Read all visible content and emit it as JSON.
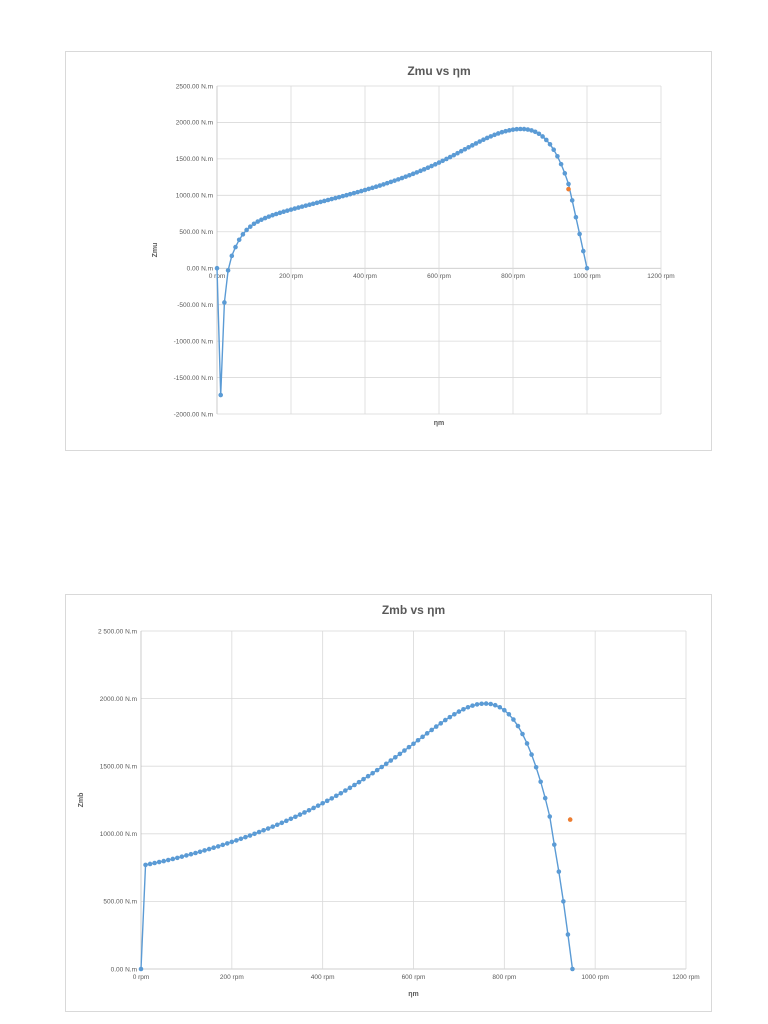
{
  "chart_data": [
    {
      "type": "scatter",
      "title": "Zmu vs ηm",
      "xlabel": "ηm",
      "ylabel": "Zmu",
      "xlim": [
        0,
        1200
      ],
      "ylim": [
        -2000,
        2500
      ],
      "x_ticks": [
        0,
        200,
        400,
        600,
        800,
        1000,
        1200
      ],
      "x_tick_labels": [
        "0 rpm",
        "200 rpm",
        "400 rpm",
        "600 rpm",
        "800 rpm",
        "1000 rpm",
        "1200 rpm"
      ],
      "y_ticks": [
        2500,
        2000,
        1500,
        1000,
        500,
        0,
        -500,
        -1000,
        -1500,
        -2000
      ],
      "y_tick_labels": [
        "2500.00 N.m",
        "2000.00 N.m",
        "1500.00 N.m",
        "1000.00 N.m",
        "500.00 N.m",
        "0.00 N.m",
        "-500.00 N.m",
        "-1000.00 N.m",
        "-1500.00 N.m",
        "-2000.00 N.m"
      ],
      "grid": true,
      "legend": "none",
      "series": [
        {
          "color": "#5b9bd5",
          "points": [
            [
              0,
              0
            ],
            [
              10,
              -1740
            ],
            [
              20,
              -470
            ],
            [
              30,
              -30
            ],
            [
              40,
              170
            ],
            [
              50,
              290
            ],
            [
              60,
              390
            ],
            [
              70,
              465
            ],
            [
              80,
              525
            ],
            [
              90,
              570
            ],
            [
              100,
              610
            ],
            [
              110,
              640
            ],
            [
              120,
              665
            ],
            [
              130,
              688
            ],
            [
              140,
              708
            ],
            [
              150,
              727
            ],
            [
              160,
              744
            ],
            [
              170,
              760
            ],
            [
              180,
              775
            ],
            [
              190,
              790
            ],
            [
              200,
              804
            ],
            [
              210,
              818
            ],
            [
              220,
              832
            ],
            [
              230,
              845
            ],
            [
              240,
              858
            ],
            [
              250,
              871
            ],
            [
              260,
              884
            ],
            [
              270,
              897
            ],
            [
              280,
              910
            ],
            [
              290,
              923
            ],
            [
              300,
              936
            ],
            [
              310,
              949
            ],
            [
              320,
              962
            ],
            [
              330,
              975
            ],
            [
              340,
              989
            ],
            [
              350,
              1002
            ],
            [
              360,
              1016
            ],
            [
              370,
              1030
            ],
            [
              380,
              1044
            ],
            [
              390,
              1058
            ],
            [
              400,
              1073
            ],
            [
              410,
              1088
            ],
            [
              420,
              1103
            ],
            [
              430,
              1118
            ],
            [
              440,
              1134
            ],
            [
              450,
              1150
            ],
            [
              460,
              1167
            ],
            [
              470,
              1184
            ],
            [
              480,
              1201
            ],
            [
              490,
              1219
            ],
            [
              500,
              1237
            ],
            [
              510,
              1256
            ],
            [
              520,
              1275
            ],
            [
              530,
              1295
            ],
            [
              540,
              1315
            ],
            [
              550,
              1336
            ],
            [
              560,
              1357
            ],
            [
              570,
              1379
            ],
            [
              580,
              1402
            ],
            [
              590,
              1425
            ],
            [
              600,
              1449
            ],
            [
              610,
              1474
            ],
            [
              620,
              1499
            ],
            [
              630,
              1525
            ],
            [
              640,
              1551
            ],
            [
              650,
              1578
            ],
            [
              660,
              1605
            ],
            [
              670,
              1632
            ],
            [
              680,
              1659
            ],
            [
              690,
              1686
            ],
            [
              700,
              1712
            ],
            [
              710,
              1738
            ],
            [
              720,
              1763
            ],
            [
              730,
              1787
            ],
            [
              740,
              1809
            ],
            [
              750,
              1830
            ],
            [
              760,
              1849
            ],
            [
              770,
              1866
            ],
            [
              780,
              1880
            ],
            [
              790,
              1892
            ],
            [
              800,
              1901
            ],
            [
              810,
              1907
            ],
            [
              820,
              1910
            ],
            [
              830,
              1909
            ],
            [
              840,
              1903
            ],
            [
              850,
              1891
            ],
            [
              860,
              1872
            ],
            [
              870,
              1845
            ],
            [
              880,
              1808
            ],
            [
              890,
              1760
            ],
            [
              900,
              1700
            ],
            [
              910,
              1626
            ],
            [
              920,
              1536
            ],
            [
              930,
              1428
            ],
            [
              940,
              1302
            ],
            [
              950,
              1155
            ],
            [
              960,
              930
            ],
            [
              970,
              700
            ],
            [
              980,
              470
            ],
            [
              990,
              235
            ],
            [
              1000,
              0
            ]
          ]
        },
        {
          "color": "#ed7d31",
          "points": [
            [
              950,
              1085
            ]
          ]
        }
      ]
    },
    {
      "type": "scatter",
      "title": "Zmb vs ηm",
      "xlabel": "ηm",
      "ylabel": "Zmb",
      "xlim": [
        0,
        1200
      ],
      "ylim": [
        0,
        2500
      ],
      "x_ticks": [
        0,
        200,
        400,
        600,
        800,
        1000,
        1200
      ],
      "x_tick_labels": [
        "0 rpm",
        "200 rpm",
        "400 rpm",
        "600 rpm",
        "800 rpm",
        "1000 rpm",
        "1200 rpm"
      ],
      "y_ticks": [
        2500,
        2000,
        1500,
        1000,
        500,
        0
      ],
      "y_tick_labels": [
        "2 500.00 N.m",
        "2000.00 N.m",
        "1500.00 N.m",
        "1000.00 N.m",
        "500.00 N.m",
        "0.00 N.m"
      ],
      "grid": true,
      "legend": "none",
      "series": [
        {
          "color": "#5b9bd5",
          "points": [
            [
              0,
              0
            ],
            [
              10,
              770
            ],
            [
              20,
              777
            ],
            [
              30,
              784
            ],
            [
              40,
              791
            ],
            [
              50,
              798
            ],
            [
              60,
              806
            ],
            [
              70,
              814
            ],
            [
              80,
              822
            ],
            [
              90,
              831
            ],
            [
              100,
              840
            ],
            [
              110,
              849
            ],
            [
              120,
              858
            ],
            [
              130,
              867
            ],
            [
              140,
              877
            ],
            [
              150,
              887
            ],
            [
              160,
              897
            ],
            [
              170,
              907
            ],
            [
              180,
              918
            ],
            [
              190,
              929
            ],
            [
              200,
              940
            ],
            [
              210,
              951
            ],
            [
              220,
              963
            ],
            [
              230,
              975
            ],
            [
              240,
              987
            ],
            [
              250,
              1000
            ],
            [
              260,
              1013
            ],
            [
              270,
              1026
            ],
            [
              280,
              1039
            ],
            [
              290,
              1053
            ],
            [
              300,
              1067
            ],
            [
              310,
              1081
            ],
            [
              320,
              1096
            ],
            [
              330,
              1111
            ],
            [
              340,
              1126
            ],
            [
              350,
              1142
            ],
            [
              360,
              1158
            ],
            [
              370,
              1174
            ],
            [
              380,
              1191
            ],
            [
              390,
              1208
            ],
            [
              400,
              1226
            ],
            [
              410,
              1244
            ],
            [
              420,
              1262
            ],
            [
              430,
              1281
            ],
            [
              440,
              1300
            ],
            [
              450,
              1320
            ],
            [
              460,
              1340
            ],
            [
              470,
              1361
            ],
            [
              480,
              1382
            ],
            [
              490,
              1404
            ],
            [
              500,
              1426
            ],
            [
              510,
              1448
            ],
            [
              520,
              1471
            ],
            [
              530,
              1494
            ],
            [
              540,
              1518
            ],
            [
              550,
              1542
            ],
            [
              560,
              1566
            ],
            [
              570,
              1591
            ],
            [
              580,
              1616
            ],
            [
              590,
              1641
            ],
            [
              600,
              1666
            ],
            [
              610,
              1692
            ],
            [
              620,
              1717
            ],
            [
              630,
              1743
            ],
            [
              640,
              1768
            ],
            [
              650,
              1793
            ],
            [
              660,
              1817
            ],
            [
              670,
              1841
            ],
            [
              680,
              1863
            ],
            [
              690,
              1884
            ],
            [
              700,
              1904
            ],
            [
              710,
              1921
            ],
            [
              720,
              1936
            ],
            [
              730,
              1948
            ],
            [
              740,
              1957
            ],
            [
              750,
              1962
            ],
            [
              760,
              1963
            ],
            [
              770,
              1960
            ],
            [
              780,
              1951
            ],
            [
              790,
              1936
            ],
            [
              800,
              1914
            ],
            [
              810,
              1884
            ],
            [
              820,
              1845
            ],
            [
              830,
              1797
            ],
            [
              840,
              1738
            ],
            [
              850,
              1668
            ],
            [
              860,
              1586
            ],
            [
              870,
              1492
            ],
            [
              880,
              1385
            ],
            [
              890,
              1264
            ],
            [
              900,
              1128
            ],
            [
              910,
              920
            ],
            [
              920,
              720
            ],
            [
              930,
              500
            ],
            [
              940,
              255
            ],
            [
              950,
              0
            ]
          ]
        },
        {
          "color": "#ed7d31",
          "points": [
            [
              945,
              1105
            ]
          ]
        }
      ]
    }
  ]
}
